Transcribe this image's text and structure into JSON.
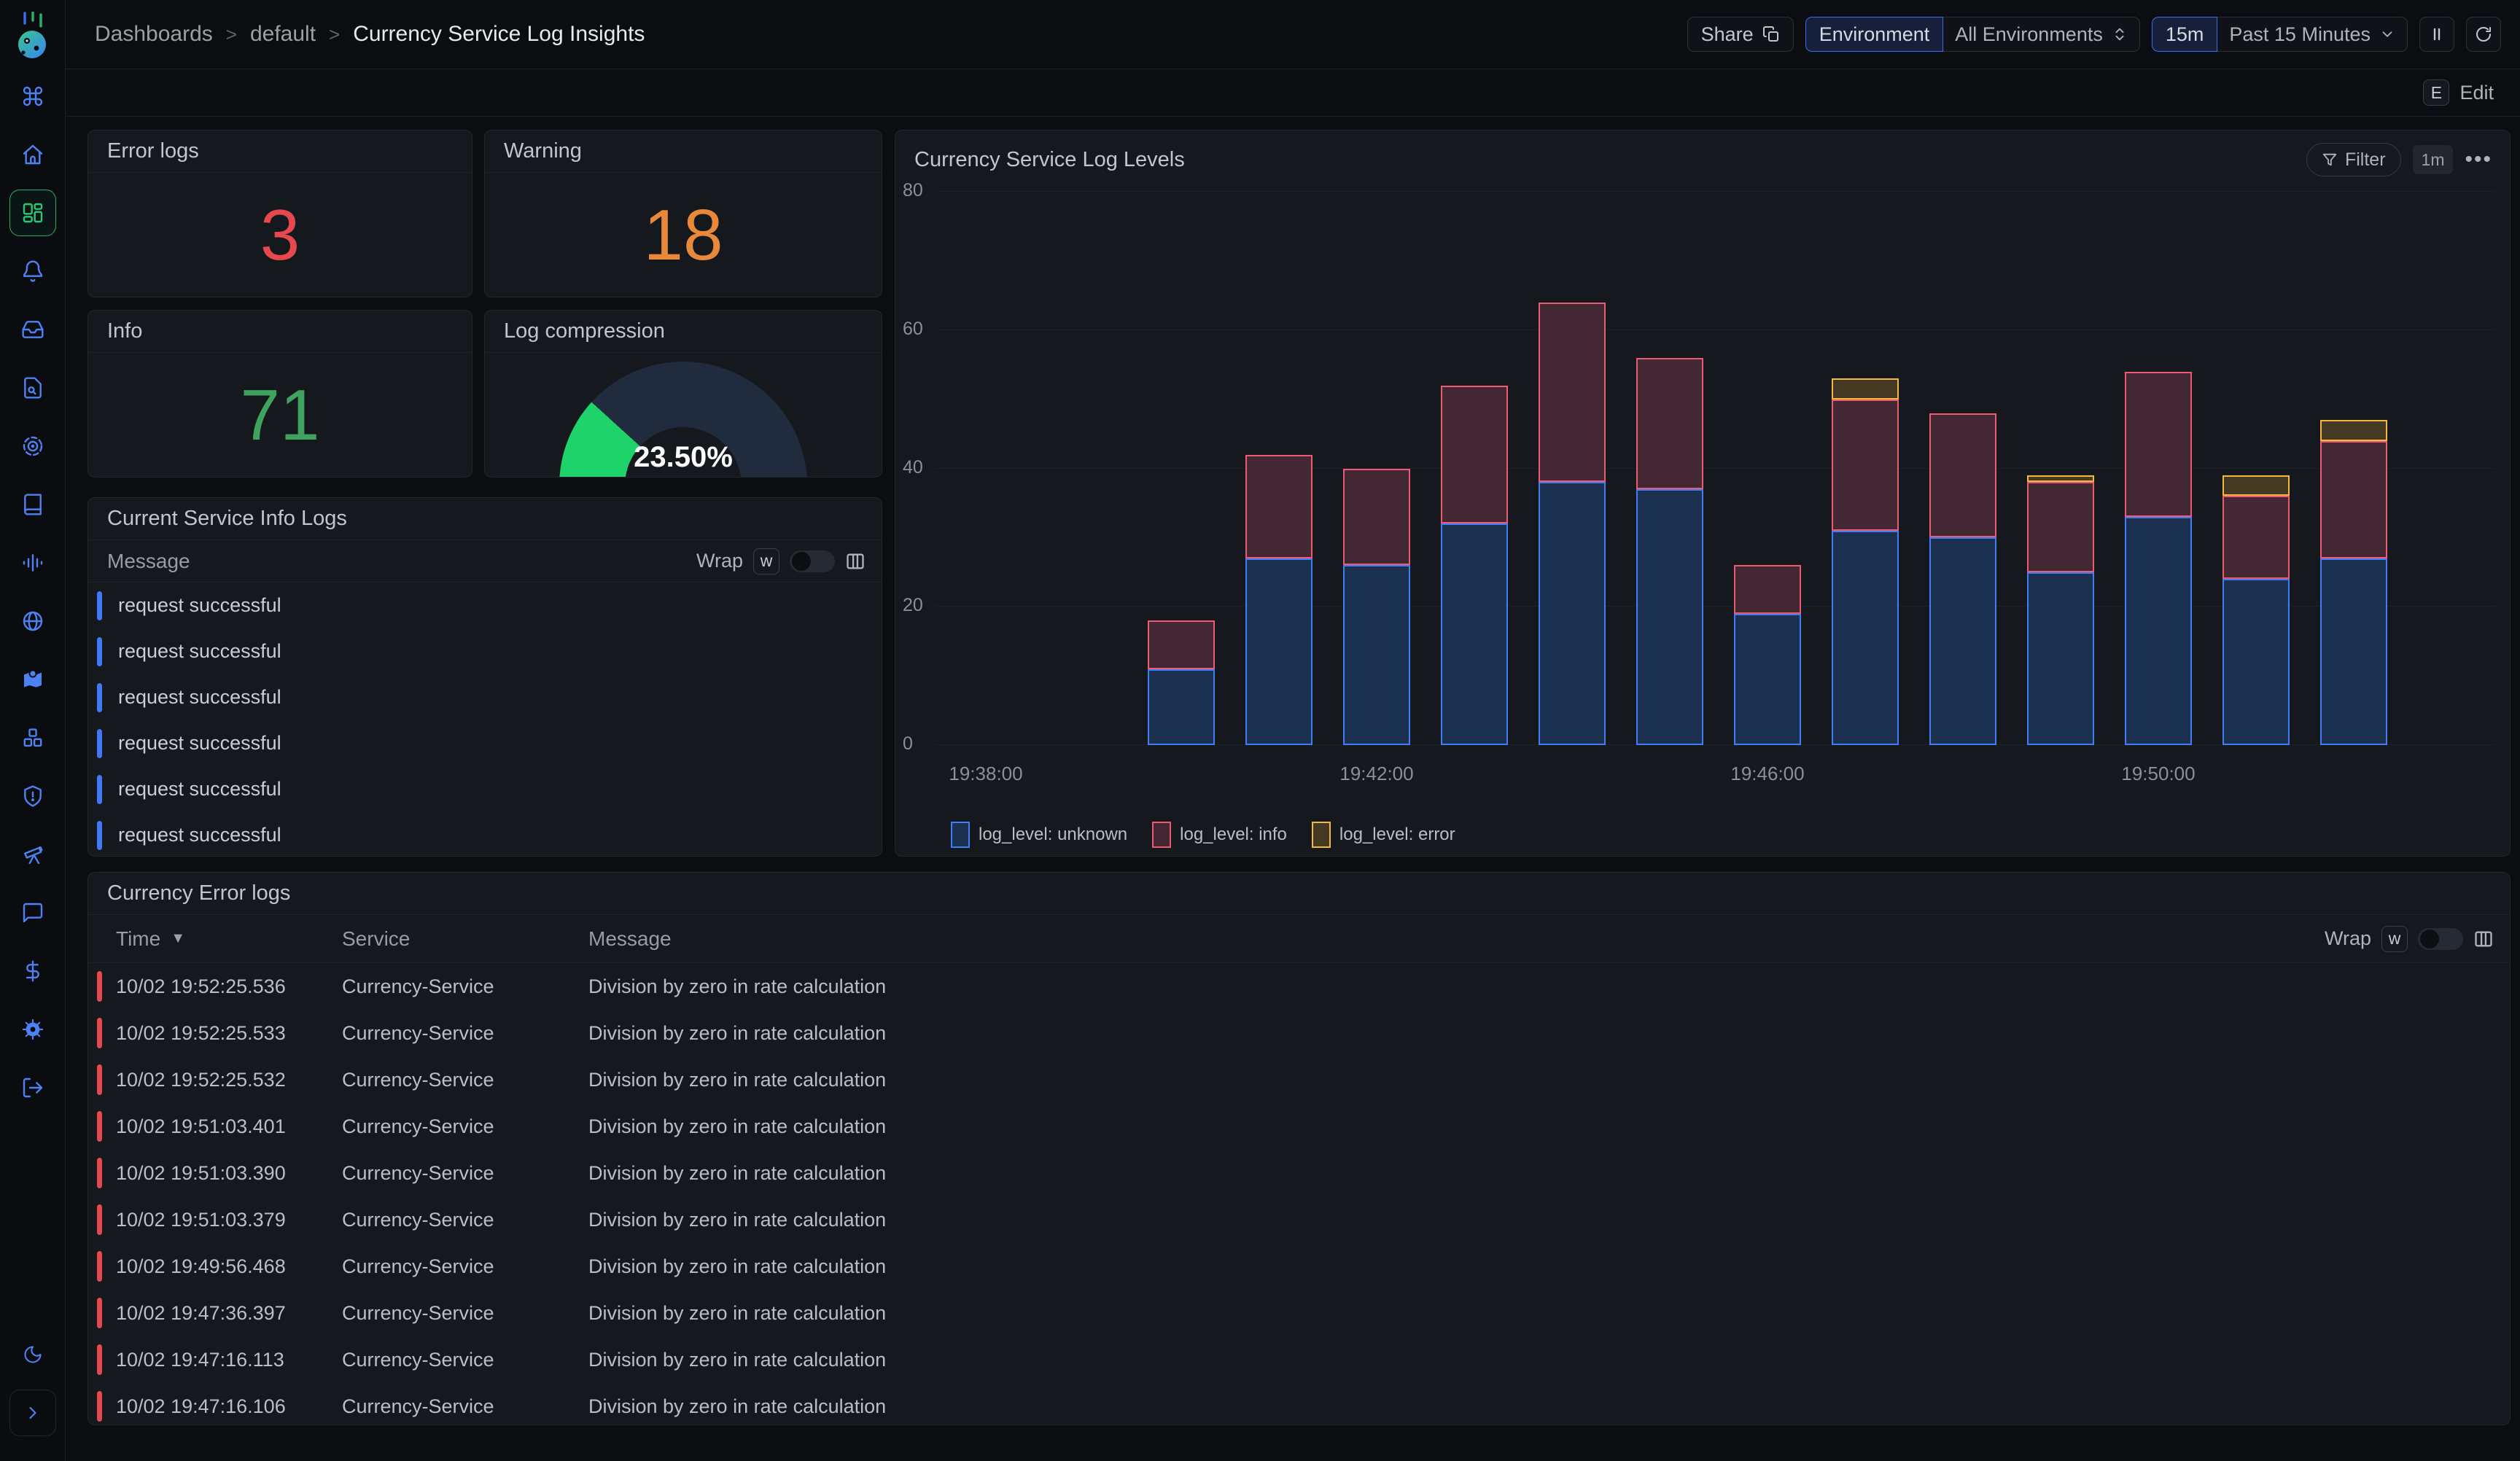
{
  "topbar": {
    "breadcrumb": [
      "Dashboards",
      "default",
      "Currency Service Log Insights"
    ],
    "share": "Share",
    "environment_label": "Environment",
    "environment_value": "All Environments",
    "range_short": "15m",
    "range_label": "Past 15 Minutes"
  },
  "editbar": {
    "shortcut": "E",
    "label": "Edit"
  },
  "sidebar": {
    "items": [
      {
        "name": "command-menu"
      },
      {
        "name": "home"
      },
      {
        "name": "dashboards",
        "active": true
      },
      {
        "name": "alerts"
      },
      {
        "name": "inbox"
      },
      {
        "name": "logs-explorer"
      },
      {
        "name": "traces"
      },
      {
        "name": "docs"
      },
      {
        "name": "metrics"
      },
      {
        "name": "globe"
      },
      {
        "name": "service-map"
      },
      {
        "name": "integrations"
      },
      {
        "name": "exceptions"
      },
      {
        "name": "explore"
      },
      {
        "name": "support-chat"
      },
      {
        "name": "billing"
      },
      {
        "name": "settings"
      },
      {
        "name": "logout"
      }
    ],
    "footer": [
      {
        "name": "theme-toggle",
        "boxed": false
      },
      {
        "name": "expand-sidebar",
        "boxed": true
      }
    ]
  },
  "stats": {
    "error_logs": {
      "title": "Error logs",
      "value": "3",
      "color": "#e5484d"
    },
    "warning": {
      "title": "Warning",
      "value": "18",
      "color": "#e8883a"
    },
    "info": {
      "title": "Info",
      "value": "71",
      "color": "#3da35f"
    },
    "log_compression": {
      "title": "Log compression",
      "label": "23.50%",
      "percent": 23.5,
      "arc_color": "#1ed36a",
      "track_color": "#202b3d"
    }
  },
  "info_logs": {
    "title": "Current Service Info Logs",
    "column": "Message",
    "wrap_label": "Wrap",
    "wrap_key": "w",
    "rows": [
      "request successful",
      "request successful",
      "request successful",
      "request successful",
      "request successful",
      "request successful"
    ]
  },
  "chart_panel": {
    "title": "Currency Service Log Levels",
    "filter_label": "Filter",
    "interval": "1m"
  },
  "chart_data": {
    "type": "bar",
    "stacked": true,
    "title": "Currency Service Log Levels",
    "x": [
      "19:40",
      "19:41",
      "19:42",
      "19:43",
      "19:44",
      "19:45",
      "19:46",
      "19:47",
      "19:48",
      "19:49",
      "19:50",
      "19:51",
      "19:52"
    ],
    "series": [
      {
        "name": "log_level: unknown",
        "fill": "#1c3050",
        "border": "#3f7ef8",
        "values": [
          11,
          27,
          26,
          32,
          38,
          37,
          19,
          31,
          30,
          25,
          33,
          24,
          27
        ]
      },
      {
        "name": "log_level: info",
        "fill": "#432733",
        "border": "#ee5a74",
        "values": [
          7,
          15,
          14,
          20,
          26,
          19,
          7,
          19,
          18,
          13,
          21,
          12,
          17
        ]
      },
      {
        "name": "log_level: error",
        "fill": "#443a24",
        "border": "#f5b83d",
        "values": [
          0,
          0,
          0,
          0,
          0,
          0,
          0,
          3,
          0,
          1,
          0,
          3,
          3
        ]
      }
    ],
    "ylim": [
      0,
      80
    ],
    "yticks": [
      0,
      20,
      40,
      60,
      80
    ],
    "xticks": [
      {
        "label": "19:38:00",
        "min": 0
      },
      {
        "label": "19:42:00",
        "min": 4
      },
      {
        "label": "19:46:00",
        "min": 8
      },
      {
        "label": "19:50:00",
        "min": 12
      }
    ],
    "bar_start_min": 2,
    "grid": true,
    "legend_position": "bottom"
  },
  "error_table": {
    "title": "Currency Error logs",
    "columns": [
      "Time",
      "Service",
      "Message"
    ],
    "wrap_label": "Wrap",
    "wrap_key": "w",
    "rows": [
      {
        "time": "10/02 19:52:25.536",
        "service": "Currency-Service",
        "message": "Division by zero in rate calculation"
      },
      {
        "time": "10/02 19:52:25.533",
        "service": "Currency-Service",
        "message": "Division by zero in rate calculation"
      },
      {
        "time": "10/02 19:52:25.532",
        "service": "Currency-Service",
        "message": "Division by zero in rate calculation"
      },
      {
        "time": "10/02 19:51:03.401",
        "service": "Currency-Service",
        "message": "Division by zero in rate calculation"
      },
      {
        "time": "10/02 19:51:03.390",
        "service": "Currency-Service",
        "message": "Division by zero in rate calculation"
      },
      {
        "time": "10/02 19:51:03.379",
        "service": "Currency-Service",
        "message": "Division by zero in rate calculation"
      },
      {
        "time": "10/02 19:49:56.468",
        "service": "Currency-Service",
        "message": "Division by zero in rate calculation"
      },
      {
        "time": "10/02 19:47:36.397",
        "service": "Currency-Service",
        "message": "Division by zero in rate calculation"
      },
      {
        "time": "10/02 19:47:16.113",
        "service": "Currency-Service",
        "message": "Division by zero in rate calculation"
      },
      {
        "time": "10/02 19:47:16.106",
        "service": "Currency-Service",
        "message": "Division by zero in rate calculation"
      }
    ]
  }
}
